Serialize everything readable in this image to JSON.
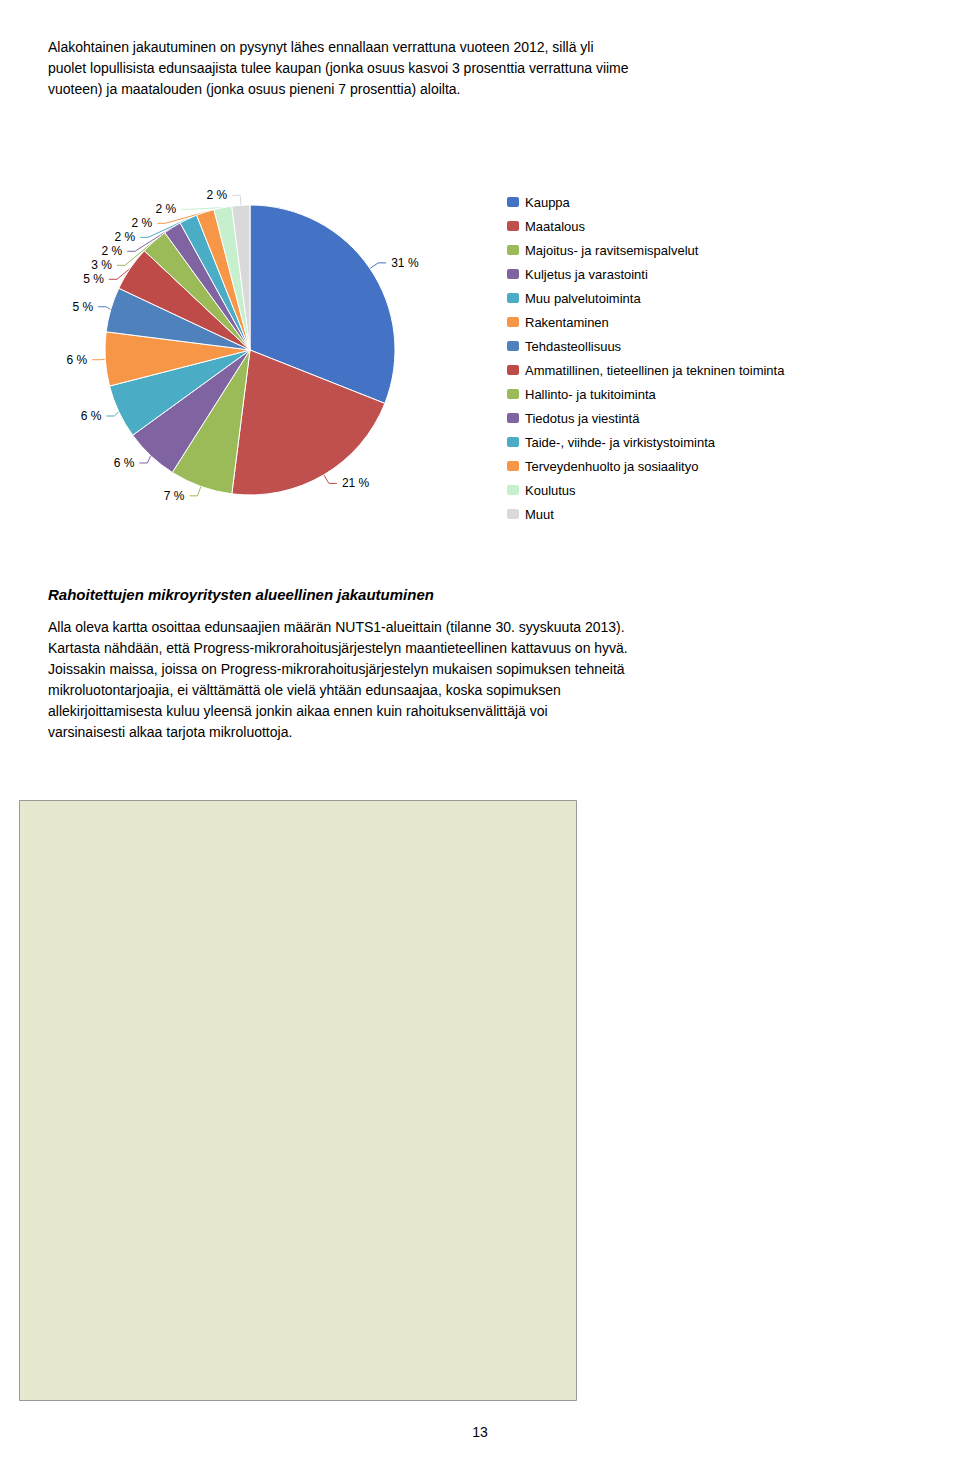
{
  "chart_data": {
    "type": "pie",
    "categories": [
      "Kauppa",
      "Maatalous",
      "Majoitus- ja ravitsemispalvelut",
      "Kuljetus ja varastointi",
      "Muu palvelutoiminta",
      "Rakentaminen",
      "Tehdasteollisuus",
      "Ammatillinen, tieteellinen ja tekninen toiminta",
      "Hallinto- ja tukitoiminta",
      "Tiedotus ja viestintä",
      "Taide-, viihde- ja virkistystoiminta",
      "Terveydenhuolto ja sosiaalityo",
      "Koulutus",
      "Muut"
    ],
    "values": [
      31,
      21,
      7,
      6,
      6,
      6,
      5,
      5,
      3,
      2,
      2,
      2,
      2,
      2
    ],
    "value_labels": [
      "31 %",
      "21 %",
      "7 %",
      "6 %",
      "6 %",
      "6 %",
      "5 %",
      "5 %",
      "3 %",
      "2 %",
      "2 %",
      "2 %",
      "2 %",
      "2 %"
    ],
    "colors": [
      "#4472C4",
      "#C0504D",
      "#9BBB59",
      "#8064A2",
      "#4BACC6",
      "#F79646",
      "#4F81BD",
      "#BE4B48",
      "#9BBB59",
      "#8064A2",
      "#4BACC6",
      "#F79646",
      "#C6EFCE",
      "#D9D9D9"
    ],
    "legend": "right",
    "annotations": [
      [
        "Alakohtainen jakautuminen on pysynyt lähes ennallaan verrattuna vuoteen 2012, sillä yli",
        "puolet lopullisista edunsaajista tulee kaupan (jonka osuus kasvoi 3 prosenttia verrattuna viime",
        "vuoteen) ja maatalouden (jonka osuus pieneni 7 prosenttia) aloilta."
      ],
      [
        "Rahoitettujen mikroyritysten alueellinen jakautuminen"
      ],
      [
        "Alla oleva kartta osoittaa edunsaajien määrän NUTS1-alueittain (tilanne 30. syyskuuta 2013).",
        "Kartasta nähdään, että Progress-mikrorahoitusjärjestelyn maantieteellinen kattavuus on hyvä.",
        "Joissakin maissa, joissa on Progress-mikrorahoitusjärjestelyn mukaisen sopimuksen tehneitä",
        "mikroluotontarjoajia, ei välttämättä ole vielä yhtään edunsaajaa, koska sopimuksen",
        "allekirjoittamisesta kuluu yleensä jonkin aikaa ennen kuin rahoituksenvälittäjä voi",
        "varsinaisesti alkaa tarjota mikroluottoja."
      ],
      [
        "13"
      ]
    ]
  }
}
